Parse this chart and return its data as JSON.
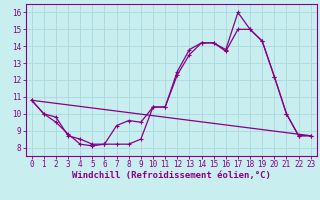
{
  "xlabel": "Windchill (Refroidissement éolien,°C)",
  "background_color": "#c8eef0",
  "grid_color": "#a8d8dc",
  "line_color": "#880088",
  "xlim": [
    -0.5,
    23.5
  ],
  "ylim": [
    7.5,
    16.5
  ],
  "xticks": [
    0,
    1,
    2,
    3,
    4,
    5,
    6,
    7,
    8,
    9,
    10,
    11,
    12,
    13,
    14,
    15,
    16,
    17,
    18,
    19,
    20,
    21,
    22,
    23
  ],
  "yticks": [
    8,
    9,
    10,
    11,
    12,
    13,
    14,
    15,
    16
  ],
  "series1_x": [
    0,
    1,
    2,
    3,
    4,
    5,
    6,
    7,
    8,
    9,
    10,
    11,
    12,
    13,
    14,
    15,
    16,
    17,
    18,
    19,
    20,
    21,
    22,
    23
  ],
  "series1_y": [
    10.8,
    10.0,
    9.5,
    8.8,
    8.2,
    8.1,
    8.2,
    9.3,
    9.6,
    9.5,
    10.4,
    10.4,
    12.5,
    13.8,
    14.2,
    14.2,
    13.8,
    16.0,
    15.0,
    14.3,
    12.2,
    10.0,
    8.7,
    8.7
  ],
  "series2_x": [
    0,
    1,
    2,
    3,
    4,
    5,
    6,
    7,
    8,
    9,
    10,
    11,
    12,
    13,
    14,
    15,
    16,
    17,
    18,
    19,
    20,
    21,
    22,
    23
  ],
  "series2_y": [
    10.8,
    10.0,
    9.8,
    8.7,
    8.5,
    8.2,
    8.2,
    8.2,
    8.2,
    8.5,
    10.4,
    10.4,
    12.3,
    13.5,
    14.2,
    14.2,
    13.7,
    15.0,
    15.0,
    14.3,
    12.2,
    10.0,
    8.7,
    8.7
  ],
  "series3_x": [
    0,
    23
  ],
  "series3_y": [
    10.8,
    8.7
  ],
  "tick_fontsize": 5.5,
  "xlabel_fontsize": 6.5,
  "marker_size": 3,
  "linewidth": 0.9
}
